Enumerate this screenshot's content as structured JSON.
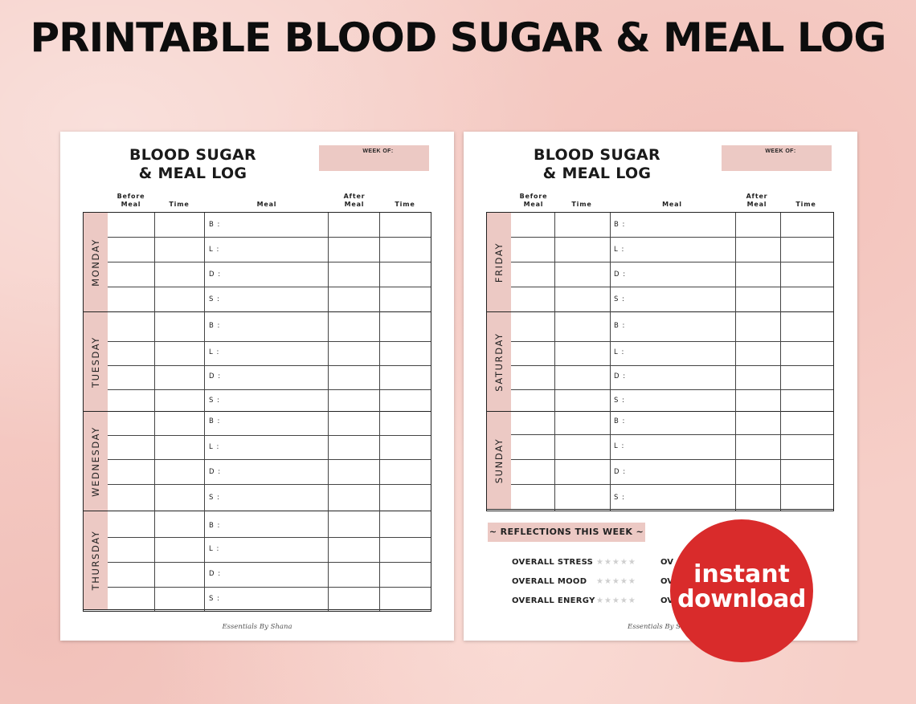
{
  "headline": "PRINTABLE BLOOD SUGAR & MEAL LOG",
  "sheet": {
    "title_line1": "BLOOD SUGAR",
    "title_line2": "& MEAL LOG",
    "week_of_label": "WEEK OF:",
    "columns": {
      "before_meal_1": "Before",
      "before_meal_2": "Meal",
      "time": "Time",
      "meal": "Meal",
      "after_meal_1": "After",
      "after_meal_2": "Meal",
      "time2": "Time"
    },
    "meal_codes": [
      "B :",
      "L :",
      "D :",
      "S :"
    ],
    "footer": "Essentials By Shana"
  },
  "left_page": {
    "days": [
      "MONDAY",
      "TUESDAY",
      "WEDNESDAY",
      "THURSDAY"
    ]
  },
  "right_page": {
    "days": [
      "FRIDAY",
      "SATURDAY",
      "SUNDAY"
    ],
    "reflections_title": "~ REFLECTIONS THIS WEEK ~",
    "metrics": [
      "OVERALL STRESS",
      "OVERALL MOOD",
      "OVERALL ENERGY"
    ],
    "metrics_right_prefix": "OV",
    "stars": "★★★★★",
    "footer_partial": "Essentials By Sh"
  },
  "badge": {
    "line1": "instant",
    "line2": "download",
    "color": "#d92b2b"
  }
}
